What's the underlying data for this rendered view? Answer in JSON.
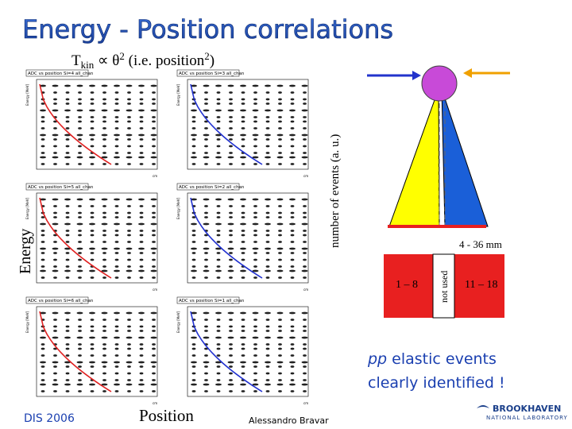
{
  "header": {
    "title": "Energy - Position correlations",
    "subtitle_main": "T",
    "subtitle_sub": "kin",
    "subtitle_rest": " ∝  θ",
    "subtitle_sup": "2",
    "subtitle_tail": " (i.e. position",
    "subtitle_sup2": "2",
    "subtitle_end": ")"
  },
  "axes": {
    "y_label": "Energy",
    "x_label": "Position",
    "events_label": "number of events (a. u.)"
  },
  "plots": [
    {
      "title": "ADC vs position Si=4 all_chan",
      "y_label": "Energy [MeV]",
      "x_label": "cm",
      "curve": "red"
    },
    {
      "title": "ADC vs position Si=3 all_chan",
      "y_label": "Energy [MeV]",
      "x_label": "cm",
      "curve": "blue"
    },
    {
      "title": "ADC vs position Si=5 all_chan",
      "y_label": "Energy [MeV]",
      "x_label": "cm",
      "curve": "red"
    },
    {
      "title": "ADC vs position Si=2 all_chan",
      "y_label": "Energy [MeV]",
      "x_label": "cm",
      "curve": "blue"
    },
    {
      "title": "ADC vs position Si=6 all_chan",
      "y_label": "Energy [MeV]",
      "x_label": "cm",
      "curve": "red"
    },
    {
      "title": "ADC vs position Si=1 all_chan",
      "y_label": "Energy [MeV]",
      "x_label": "cm",
      "curve": "blue"
    }
  ],
  "diagram": {
    "range": "4 - 36 mm",
    "left_strips": "1 – 8",
    "not_used": "not used",
    "right_strips": "11 – 18"
  },
  "note": {
    "line1_italic": "pp",
    "line1_rest": " elastic events",
    "line2": "clearly identified !"
  },
  "footer": {
    "conference": "DIS 2006",
    "author": "Alessandro Bravar",
    "logo_top": "BROOKHAVEN",
    "logo_bottom": "NATIONAL LABORATORY"
  }
}
